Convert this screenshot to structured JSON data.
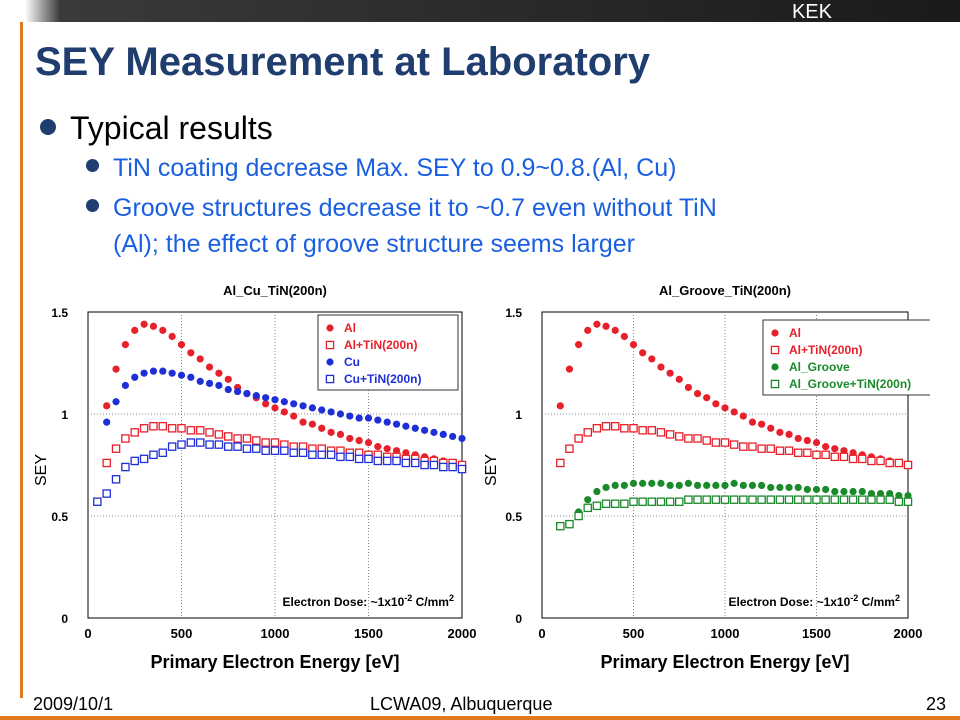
{
  "header": {
    "org": "KEK"
  },
  "slide": {
    "title": "SEY Measurement at Laboratory",
    "bullet": "Typical results",
    "sub1": "TiN coating decrease Max. SEY to 0.9~0.8.(Al, Cu)",
    "sub2_line1": "Groove structures decrease it to ~0.7 even without TiN",
    "sub2_line2": "(Al); the effect of groove structure seems larger"
  },
  "footer": {
    "date": "2009/10/1",
    "event": "LCWA09, Albuquerque",
    "page": "23"
  },
  "colors": {
    "title": "#1f3d6e",
    "bullet_text": "#1a5fe0",
    "accent": "#e07a1f",
    "red": "#e8202a",
    "blue": "#1f2fd8",
    "green": "#1a8a2a"
  },
  "chart_data": [
    {
      "type": "scatter",
      "title": "Al_Cu_TiN(200n)",
      "xlabel": "Primary Electron Energy [eV]",
      "ylabel": "SEY",
      "xlim": [
        0,
        2000
      ],
      "ylim": [
        0,
        1.5
      ],
      "xticks": [
        0,
        500,
        1000,
        1500,
        2000
      ],
      "yticks": [
        0,
        0.5,
        1,
        1.5
      ],
      "annotation": "Electron Dose: ~1x10-2 C/mm2",
      "legend_position": "top-right",
      "series": [
        {
          "name": "Al",
          "color": "#e8202a",
          "marker": "filled-circle",
          "x": [
            100,
            150,
            200,
            250,
            300,
            350,
            400,
            450,
            500,
            550,
            600,
            650,
            700,
            750,
            800,
            850,
            900,
            950,
            1000,
            1050,
            1100,
            1150,
            1200,
            1250,
            1300,
            1350,
            1400,
            1450,
            1500,
            1550,
            1600,
            1650,
            1700,
            1750,
            1800,
            1850,
            1900,
            1950,
            2000
          ],
          "y": [
            1.04,
            1.22,
            1.34,
            1.41,
            1.44,
            1.43,
            1.41,
            1.38,
            1.34,
            1.3,
            1.27,
            1.23,
            1.2,
            1.17,
            1.13,
            1.1,
            1.08,
            1.05,
            1.03,
            1.01,
            0.99,
            0.96,
            0.95,
            0.93,
            0.91,
            0.9,
            0.88,
            0.87,
            0.86,
            0.84,
            0.83,
            0.82,
            0.81,
            0.8,
            0.79,
            0.78,
            0.77,
            0.76,
            0.75
          ]
        },
        {
          "name": "Al+TiN(200n)",
          "color": "#e8202a",
          "marker": "open-square",
          "x": [
            100,
            150,
            200,
            250,
            300,
            350,
            400,
            450,
            500,
            550,
            600,
            650,
            700,
            750,
            800,
            850,
            900,
            950,
            1000,
            1050,
            1100,
            1150,
            1200,
            1250,
            1300,
            1350,
            1400,
            1450,
            1500,
            1550,
            1600,
            1650,
            1700,
            1750,
            1800,
            1850,
            1900,
            1950,
            2000
          ],
          "y": [
            0.76,
            0.83,
            0.88,
            0.91,
            0.93,
            0.94,
            0.94,
            0.93,
            0.93,
            0.92,
            0.92,
            0.91,
            0.9,
            0.89,
            0.88,
            0.88,
            0.87,
            0.86,
            0.86,
            0.85,
            0.84,
            0.84,
            0.83,
            0.83,
            0.82,
            0.82,
            0.81,
            0.81,
            0.8,
            0.8,
            0.79,
            0.79,
            0.78,
            0.78,
            0.77,
            0.77,
            0.76,
            0.76,
            0.75
          ]
        },
        {
          "name": "Cu",
          "color": "#1f2fd8",
          "marker": "filled-circle",
          "x": [
            100,
            150,
            200,
            250,
            300,
            350,
            400,
            450,
            500,
            550,
            600,
            650,
            700,
            750,
            800,
            850,
            900,
            950,
            1000,
            1050,
            1100,
            1150,
            1200,
            1250,
            1300,
            1350,
            1400,
            1450,
            1500,
            1550,
            1600,
            1650,
            1700,
            1750,
            1800,
            1850,
            1900,
            1950,
            2000
          ],
          "y": [
            0.96,
            1.06,
            1.14,
            1.18,
            1.2,
            1.21,
            1.21,
            1.2,
            1.19,
            1.18,
            1.16,
            1.15,
            1.14,
            1.12,
            1.11,
            1.1,
            1.09,
            1.08,
            1.07,
            1.06,
            1.05,
            1.04,
            1.03,
            1.02,
            1.01,
            1.0,
            0.99,
            0.98,
            0.98,
            0.97,
            0.96,
            0.95,
            0.94,
            0.93,
            0.92,
            0.91,
            0.9,
            0.89,
            0.88
          ]
        },
        {
          "name": "Cu+TiN(200n)",
          "color": "#1f2fd8",
          "marker": "open-square",
          "x": [
            50,
            100,
            150,
            200,
            250,
            300,
            350,
            400,
            450,
            500,
            550,
            600,
            650,
            700,
            750,
            800,
            850,
            900,
            950,
            1000,
            1050,
            1100,
            1150,
            1200,
            1250,
            1300,
            1350,
            1400,
            1450,
            1500,
            1550,
            1600,
            1650,
            1700,
            1750,
            1800,
            1850,
            1900,
            1950,
            2000
          ],
          "y": [
            0.57,
            0.61,
            0.68,
            0.74,
            0.77,
            0.78,
            0.8,
            0.81,
            0.84,
            0.85,
            0.86,
            0.86,
            0.85,
            0.85,
            0.84,
            0.84,
            0.83,
            0.83,
            0.82,
            0.82,
            0.82,
            0.81,
            0.81,
            0.8,
            0.8,
            0.8,
            0.79,
            0.79,
            0.78,
            0.78,
            0.77,
            0.77,
            0.77,
            0.76,
            0.76,
            0.75,
            0.75,
            0.74,
            0.74,
            0.73
          ]
        }
      ]
    },
    {
      "type": "scatter",
      "title": "Al_Groove_TiN(200n)",
      "xlabel": "Primary Electron Energy [eV]",
      "ylabel": "SEY",
      "xlim": [
        0,
        2000
      ],
      "ylim": [
        0,
        1.5
      ],
      "xticks": [
        0,
        500,
        1000,
        1500,
        2000
      ],
      "yticks": [
        0,
        0.5,
        1,
        1.5
      ],
      "annotation": "Electron Dose: ~1x10-2 C/mm2",
      "legend_position": "top-right",
      "series": [
        {
          "name": "Al",
          "color": "#e8202a",
          "marker": "filled-circle",
          "x": [
            100,
            150,
            200,
            250,
            300,
            350,
            400,
            450,
            500,
            550,
            600,
            650,
            700,
            750,
            800,
            850,
            900,
            950,
            1000,
            1050,
            1100,
            1150,
            1200,
            1250,
            1300,
            1350,
            1400,
            1450,
            1500,
            1550,
            1600,
            1650,
            1700,
            1750,
            1800,
            1850,
            1900,
            1950,
            2000
          ],
          "y": [
            1.04,
            1.22,
            1.34,
            1.41,
            1.44,
            1.43,
            1.41,
            1.38,
            1.34,
            1.3,
            1.27,
            1.23,
            1.2,
            1.17,
            1.13,
            1.1,
            1.08,
            1.05,
            1.03,
            1.01,
            0.99,
            0.96,
            0.95,
            0.93,
            0.91,
            0.9,
            0.88,
            0.87,
            0.86,
            0.84,
            0.83,
            0.82,
            0.81,
            0.8,
            0.79,
            0.78,
            0.77,
            0.76,
            0.75
          ]
        },
        {
          "name": "Al+TiN(200n)",
          "color": "#e8202a",
          "marker": "open-square",
          "x": [
            100,
            150,
            200,
            250,
            300,
            350,
            400,
            450,
            500,
            550,
            600,
            650,
            700,
            750,
            800,
            850,
            900,
            950,
            1000,
            1050,
            1100,
            1150,
            1200,
            1250,
            1300,
            1350,
            1400,
            1450,
            1500,
            1550,
            1600,
            1650,
            1700,
            1750,
            1800,
            1850,
            1900,
            1950,
            2000
          ],
          "y": [
            0.76,
            0.83,
            0.88,
            0.91,
            0.93,
            0.94,
            0.94,
            0.93,
            0.93,
            0.92,
            0.92,
            0.91,
            0.9,
            0.89,
            0.88,
            0.88,
            0.87,
            0.86,
            0.86,
            0.85,
            0.84,
            0.84,
            0.83,
            0.83,
            0.82,
            0.82,
            0.81,
            0.81,
            0.8,
            0.8,
            0.79,
            0.79,
            0.78,
            0.78,
            0.77,
            0.77,
            0.76,
            0.76,
            0.75
          ]
        },
        {
          "name": "Al_Groove",
          "color": "#1a8a2a",
          "marker": "filled-circle",
          "x": [
            100,
            150,
            200,
            250,
            300,
            350,
            400,
            450,
            500,
            550,
            600,
            650,
            700,
            750,
            800,
            850,
            900,
            950,
            1000,
            1050,
            1100,
            1150,
            1200,
            1250,
            1300,
            1350,
            1400,
            1450,
            1500,
            1550,
            1600,
            1650,
            1700,
            1750,
            1800,
            1850,
            1900,
            1950,
            2000
          ],
          "y": [
            0.45,
            0.46,
            0.52,
            0.58,
            0.62,
            0.64,
            0.65,
            0.65,
            0.66,
            0.66,
            0.66,
            0.66,
            0.65,
            0.65,
            0.66,
            0.65,
            0.65,
            0.65,
            0.65,
            0.66,
            0.65,
            0.65,
            0.65,
            0.64,
            0.64,
            0.64,
            0.64,
            0.63,
            0.63,
            0.63,
            0.62,
            0.62,
            0.62,
            0.62,
            0.61,
            0.61,
            0.61,
            0.6,
            0.6
          ]
        },
        {
          "name": "Al_Groove+TiN(200n)",
          "color": "#1a8a2a",
          "marker": "open-square",
          "x": [
            100,
            150,
            200,
            250,
            300,
            350,
            400,
            450,
            500,
            550,
            600,
            650,
            700,
            750,
            800,
            850,
            900,
            950,
            1000,
            1050,
            1100,
            1150,
            1200,
            1250,
            1300,
            1350,
            1400,
            1450,
            1500,
            1550,
            1600,
            1650,
            1700,
            1750,
            1800,
            1850,
            1900,
            1950,
            2000
          ],
          "y": [
            0.45,
            0.46,
            0.5,
            0.54,
            0.55,
            0.56,
            0.56,
            0.56,
            0.57,
            0.57,
            0.57,
            0.57,
            0.57,
            0.57,
            0.58,
            0.58,
            0.58,
            0.58,
            0.58,
            0.58,
            0.58,
            0.58,
            0.58,
            0.58,
            0.58,
            0.58,
            0.58,
            0.58,
            0.58,
            0.58,
            0.58,
            0.58,
            0.58,
            0.58,
            0.58,
            0.58,
            0.58,
            0.57,
            0.57
          ]
        }
      ]
    }
  ]
}
